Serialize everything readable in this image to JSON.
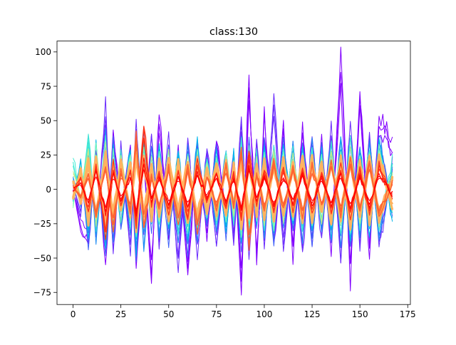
{
  "chart_data": {
    "type": "line",
    "title": "class:130",
    "xlabel": "",
    "ylabel": "",
    "xlim": [
      -8.4,
      176.4
    ],
    "ylim": [
      -83.8,
      107.9
    ],
    "xticks": [
      0,
      25,
      50,
      75,
      100,
      125,
      150,
      175
    ],
    "yticks": [
      -75,
      -50,
      -25,
      0,
      25,
      50,
      75,
      100
    ],
    "grid": false,
    "legend": "none",
    "n_points": 168,
    "colormap": [
      "#8000ff",
      "#4062fa",
      "#00b5eb",
      "#40ecd4",
      "#80ffb4",
      "#c0eb8d",
      "#ffb360",
      "#ff6230",
      "#ff0000"
    ],
    "anchors_x": [
      0,
      4,
      8,
      12,
      17,
      21,
      25,
      30,
      33,
      37,
      41,
      45,
      50,
      55,
      60,
      65,
      70,
      75,
      80,
      84,
      88,
      92,
      96,
      100,
      105,
      110,
      115,
      120,
      125,
      130,
      135,
      140,
      145,
      150,
      155,
      160,
      167
    ],
    "series": [
      {
        "name": "",
        "color": "#8000ff",
        "width": 1.0,
        "values": [
          0,
          -30,
          -42,
          28,
          -55,
          45,
          -20,
          35,
          -60,
          25,
          -70,
          58,
          -35,
          30,
          -65,
          32,
          -38,
          40,
          -22,
          30,
          -74,
          83,
          -55,
          55,
          -45,
          46,
          -50,
          48,
          -40,
          38,
          -45,
          99,
          -65,
          73,
          -50,
          55,
          34
        ]
      },
      {
        "name": "",
        "color": "#6a2bfd",
        "width": 1.0,
        "values": [
          5,
          -20,
          40,
          -35,
          63,
          -50,
          30,
          -45,
          50,
          -38,
          45,
          -40,
          38,
          -62,
          40,
          -50,
          35,
          -45,
          30,
          -40,
          55,
          -50,
          40,
          -42,
          68,
          -45,
          38,
          -48,
          42,
          -40,
          46,
          -55,
          50,
          -40,
          45,
          -45,
          20
        ]
      },
      {
        "name": "",
        "color": "#4062fa",
        "width": 1.0,
        "values": [
          -5,
          15,
          -42,
          30,
          -48,
          38,
          -32,
          28,
          -52,
          42,
          -30,
          35,
          -40,
          25,
          -48,
          38,
          -28,
          30,
          -35,
          22,
          -45,
          40,
          -30,
          35,
          -40,
          42,
          -35,
          30,
          -38,
          34,
          -40,
          40,
          -45,
          35,
          -38,
          42,
          -20
        ]
      },
      {
        "name": "",
        "color": "#1f8cf4",
        "width": 1.0,
        "values": [
          10,
          -12,
          32,
          -38,
          40,
          -35,
          28,
          -30,
          42,
          -44,
          30,
          -32,
          30,
          -38,
          32,
          -35,
          26,
          -32,
          30,
          -28,
          38,
          -40,
          30,
          -34,
          36,
          -30,
          32,
          -36,
          34,
          -30,
          35,
          -38,
          42,
          -32,
          35,
          -38,
          15
        ]
      },
      {
        "name": "",
        "color": "#00b5eb",
        "width": 1.0,
        "values": [
          -8,
          22,
          -35,
          36,
          -42,
          30,
          -25,
          32,
          -45,
          38,
          -28,
          30,
          -32,
          30,
          -40,
          34,
          -24,
          28,
          -30,
          26,
          -40,
          34,
          -26,
          30,
          -34,
          34,
          -28,
          32,
          -32,
          30,
          -34,
          36,
          -38,
          32,
          -33,
          38,
          -25
        ]
      },
      {
        "name": "",
        "color": "#40ecd4",
        "width": 1.0,
        "values": [
          25,
          -10,
          42,
          -30,
          36,
          -28,
          30,
          -25,
          38,
          -32,
          26,
          -28,
          30,
          -30,
          28,
          -30,
          24,
          -26,
          28,
          -24,
          35,
          -30,
          26,
          -28,
          32,
          -26,
          30,
          -30,
          30,
          -28,
          32,
          -32,
          35,
          -28,
          32,
          -30,
          22
        ]
      },
      {
        "name": "",
        "color": "#80ffb4",
        "width": 1.0,
        "values": [
          -12,
          18,
          -28,
          30,
          -32,
          26,
          -22,
          28,
          -36,
          30,
          -24,
          26,
          -26,
          24,
          -30,
          28,
          -20,
          24,
          -24,
          22,
          -32,
          28,
          -22,
          26,
          -28,
          28,
          -24,
          26,
          -26,
          26,
          -28,
          30,
          -30,
          26,
          -28,
          30,
          -18
        ]
      },
      {
        "name": "",
        "color": "#c0eb8d",
        "width": 1.0,
        "values": [
          15,
          -8,
          30,
          -25,
          32,
          -22,
          26,
          -20,
          34,
          -26,
          22,
          -24,
          26,
          -24,
          24,
          -26,
          20,
          -22,
          24,
          -20,
          30,
          -26,
          22,
          -24,
          26,
          -22,
          26,
          -26,
          26,
          -24,
          28,
          -28,
          30,
          -24,
          26,
          -26,
          14
        ]
      },
      {
        "name": "",
        "color": "#ffb360",
        "width": 3.0,
        "values": [
          -6,
          14,
          -24,
          24,
          -28,
          22,
          -18,
          22,
          -30,
          26,
          -20,
          22,
          -22,
          20,
          -26,
          24,
          -18,
          20,
          -20,
          18,
          -28,
          24,
          -18,
          22,
          -24,
          22,
          -20,
          22,
          -22,
          20,
          -24,
          24,
          -26,
          22,
          -24,
          24,
          -12
        ]
      },
      {
        "name": "",
        "color": "#ffb360",
        "width": 3.0,
        "values": [
          8,
          -10,
          22,
          -20,
          26,
          -20,
          20,
          -18,
          28,
          -22,
          18,
          -20,
          22,
          -18,
          22,
          -22,
          16,
          -18,
          20,
          -16,
          24,
          -22,
          18,
          -20,
          22,
          -18,
          20,
          -22,
          22,
          -18,
          22,
          -22,
          24,
          -20,
          22,
          -22,
          10
        ]
      },
      {
        "name": "",
        "color": "#ff6230",
        "width": 1.4,
        "values": [
          2,
          -6,
          12,
          -22,
          18,
          -30,
          14,
          -16,
          40,
          -28,
          10,
          -14,
          16,
          -26,
          18,
          -30,
          12,
          -14,
          18,
          -12,
          30,
          -45,
          14,
          -16,
          20,
          -16,
          18,
          -20,
          18,
          -14,
          20,
          -18,
          22,
          -16,
          20,
          -20,
          6
        ]
      },
      {
        "name": "",
        "color": "#ff3118",
        "width": 1.2,
        "values": [
          -3,
          10,
          -18,
          20,
          -38,
          18,
          -12,
          16,
          -30,
          48,
          -12,
          14,
          -18,
          14,
          -22,
          20,
          -10,
          14,
          -16,
          14,
          -24,
          28,
          -12,
          16,
          -18,
          16,
          -16,
          16,
          -18,
          14,
          -18,
          18,
          -20,
          16,
          -18,
          18,
          -5
        ]
      },
      {
        "name": "",
        "color": "#ff0000",
        "width": 1.0,
        "values": [
          0,
          5,
          -10,
          14,
          -18,
          12,
          -8,
          10,
          -20,
          20,
          -8,
          10,
          -12,
          10,
          -14,
          12,
          -6,
          10,
          -10,
          8,
          -16,
          18,
          -8,
          10,
          -12,
          10,
          -10,
          12,
          -12,
          10,
          -12,
          12,
          -14,
          10,
          -12,
          12,
          -4
        ]
      }
    ]
  }
}
